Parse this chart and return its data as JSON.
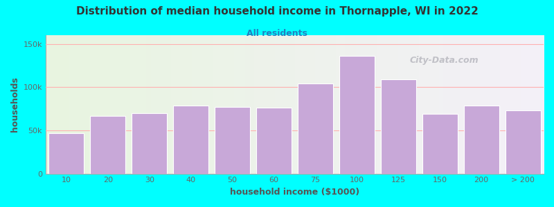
{
  "title": "Distribution of median household income in Thornapple, WI in 2022",
  "subtitle": "All residents",
  "xlabel": "household income ($1000)",
  "ylabel": "households",
  "categories": [
    "10",
    "20",
    "30",
    "40",
    "50",
    "60",
    "75",
    "100",
    "125",
    "150",
    "200",
    "> 200"
  ],
  "values": [
    47000,
    67000,
    70000,
    79000,
    77000,
    76000,
    104000,
    136000,
    109000,
    69000,
    79000,
    73000
  ],
  "bar_color": "#c8a8d8",
  "bar_edge_color": "#ffffff",
  "background_outer": "#00ffff",
  "plot_bg_left": "#e8f5e0",
  "plot_bg_right": "#f4f0f8",
  "grid_color": "#ffb0b0",
  "title_color": "#333333",
  "subtitle_color": "#2080c0",
  "axis_label_color": "#555555",
  "tick_label_color": "#666666",
  "watermark": "City-Data.com",
  "ylim": [
    0,
    160000
  ],
  "yticks": [
    0,
    50000,
    100000,
    150000
  ]
}
